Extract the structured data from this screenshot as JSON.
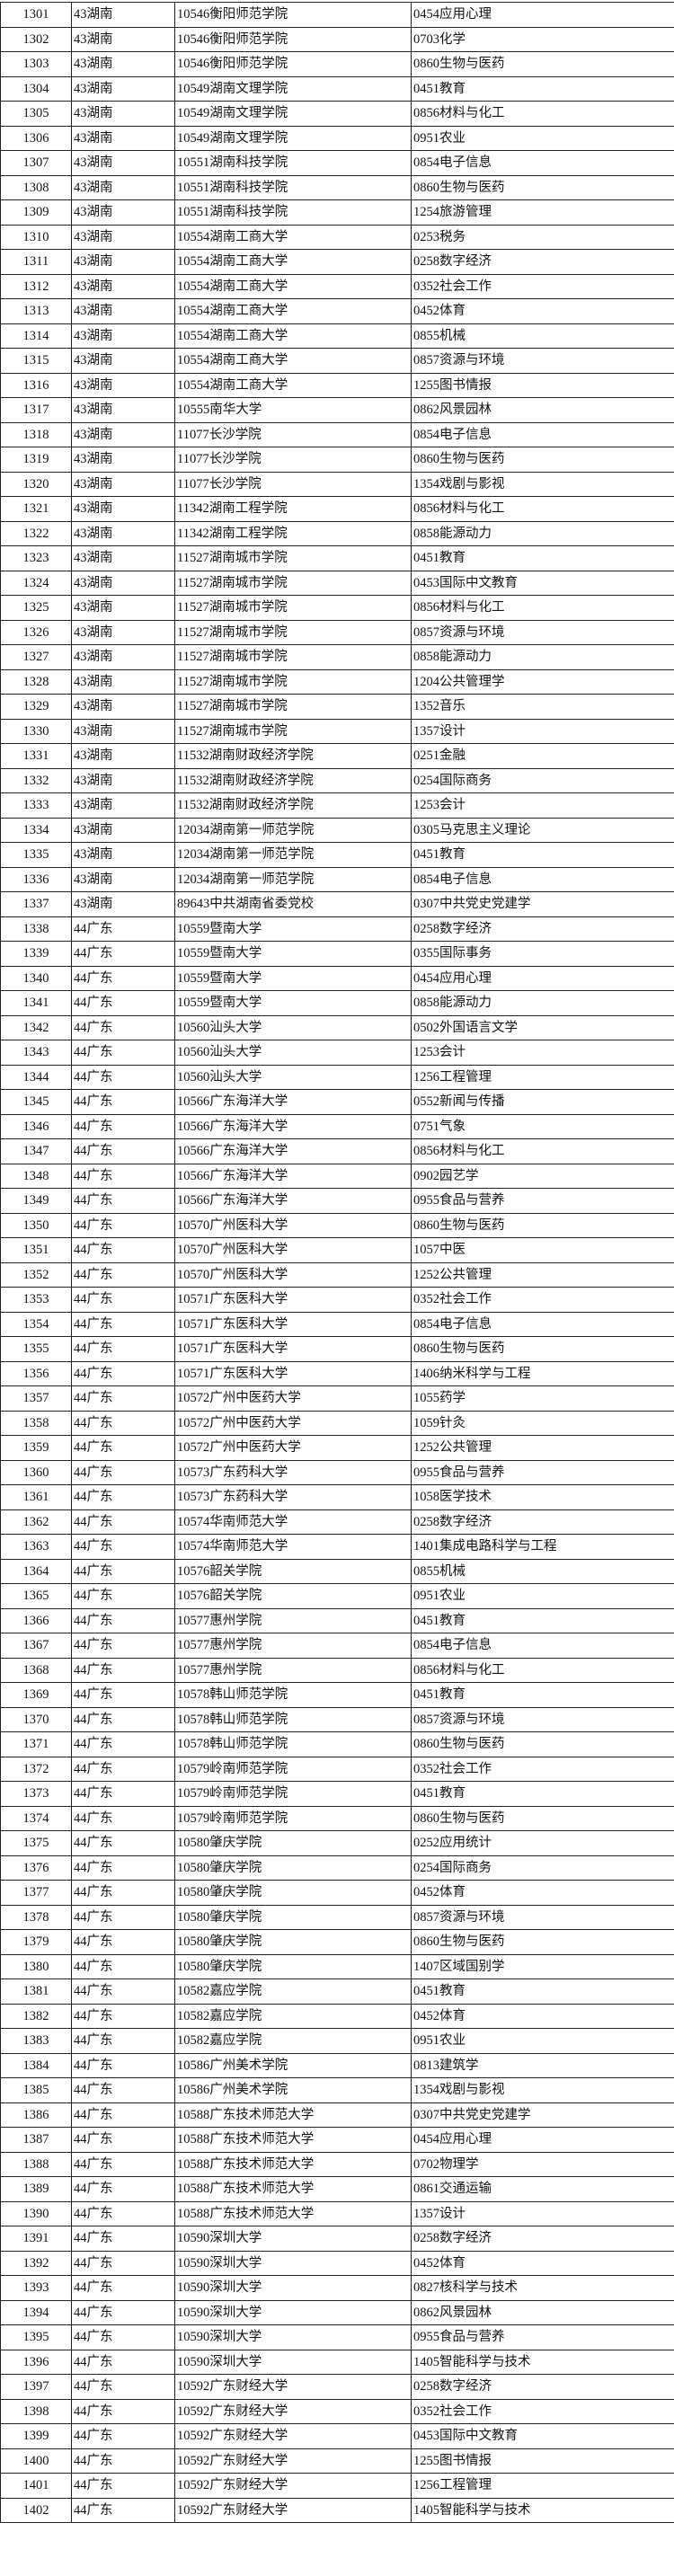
{
  "table": {
    "rows": [
      [
        "1301",
        "43湖南",
        "10546衡阳师范学院",
        "0454应用心理"
      ],
      [
        "1302",
        "43湖南",
        "10546衡阳师范学院",
        "0703化学"
      ],
      [
        "1303",
        "43湖南",
        "10546衡阳师范学院",
        "0860生物与医药"
      ],
      [
        "1304",
        "43湖南",
        "10549湖南文理学院",
        "0451教育"
      ],
      [
        "1305",
        "43湖南",
        "10549湖南文理学院",
        "0856材料与化工"
      ],
      [
        "1306",
        "43湖南",
        "10549湖南文理学院",
        "0951农业"
      ],
      [
        "1307",
        "43湖南",
        "10551湖南科技学院",
        "0854电子信息"
      ],
      [
        "1308",
        "43湖南",
        "10551湖南科技学院",
        "0860生物与医药"
      ],
      [
        "1309",
        "43湖南",
        "10551湖南科技学院",
        "1254旅游管理"
      ],
      [
        "1310",
        "43湖南",
        "10554湖南工商大学",
        "0253税务"
      ],
      [
        "1311",
        "43湖南",
        "10554湖南工商大学",
        "0258数字经济"
      ],
      [
        "1312",
        "43湖南",
        "10554湖南工商大学",
        "0352社会工作"
      ],
      [
        "1313",
        "43湖南",
        "10554湖南工商大学",
        "0452体育"
      ],
      [
        "1314",
        "43湖南",
        "10554湖南工商大学",
        "0855机械"
      ],
      [
        "1315",
        "43湖南",
        "10554湖南工商大学",
        "0857资源与环境"
      ],
      [
        "1316",
        "43湖南",
        "10554湖南工商大学",
        "1255图书情报"
      ],
      [
        "1317",
        "43湖南",
        "10555南华大学",
        "0862风景园林"
      ],
      [
        "1318",
        "43湖南",
        "11077长沙学院",
        "0854电子信息"
      ],
      [
        "1319",
        "43湖南",
        "11077长沙学院",
        "0860生物与医药"
      ],
      [
        "1320",
        "43湖南",
        "11077长沙学院",
        "1354戏剧与影视"
      ],
      [
        "1321",
        "43湖南",
        "11342湖南工程学院",
        "0856材料与化工"
      ],
      [
        "1322",
        "43湖南",
        "11342湖南工程学院",
        "0858能源动力"
      ],
      [
        "1323",
        "43湖南",
        "11527湖南城市学院",
        "0451教育"
      ],
      [
        "1324",
        "43湖南",
        "11527湖南城市学院",
        "0453国际中文教育"
      ],
      [
        "1325",
        "43湖南",
        "11527湖南城市学院",
        "0856材料与化工"
      ],
      [
        "1326",
        "43湖南",
        "11527湖南城市学院",
        "0857资源与环境"
      ],
      [
        "1327",
        "43湖南",
        "11527湖南城市学院",
        "0858能源动力"
      ],
      [
        "1328",
        "43湖南",
        "11527湖南城市学院",
        "1204公共管理学"
      ],
      [
        "1329",
        "43湖南",
        "11527湖南城市学院",
        "1352音乐"
      ],
      [
        "1330",
        "43湖南",
        "11527湖南城市学院",
        "1357设计"
      ],
      [
        "1331",
        "43湖南",
        "11532湖南财政经济学院",
        "0251金融"
      ],
      [
        "1332",
        "43湖南",
        "11532湖南财政经济学院",
        "0254国际商务"
      ],
      [
        "1333",
        "43湖南",
        "11532湖南财政经济学院",
        "1253会计"
      ],
      [
        "1334",
        "43湖南",
        "12034湖南第一师范学院",
        "0305马克思主义理论"
      ],
      [
        "1335",
        "43湖南",
        "12034湖南第一师范学院",
        "0451教育"
      ],
      [
        "1336",
        "43湖南",
        "12034湖南第一师范学院",
        "0854电子信息"
      ],
      [
        "1337",
        "43湖南",
        "89643中共湖南省委党校",
        "0307中共党史党建学"
      ],
      [
        "1338",
        "44广东",
        "10559暨南大学",
        "0258数字经济"
      ],
      [
        "1339",
        "44广东",
        "10559暨南大学",
        "0355国际事务"
      ],
      [
        "1340",
        "44广东",
        "10559暨南大学",
        "0454应用心理"
      ],
      [
        "1341",
        "44广东",
        "10559暨南大学",
        "0858能源动力"
      ],
      [
        "1342",
        "44广东",
        "10560汕头大学",
        "0502外国语言文学"
      ],
      [
        "1343",
        "44广东",
        "10560汕头大学",
        "1253会计"
      ],
      [
        "1344",
        "44广东",
        "10560汕头大学",
        "1256工程管理"
      ],
      [
        "1345",
        "44广东",
        "10566广东海洋大学",
        "0552新闻与传播"
      ],
      [
        "1346",
        "44广东",
        "10566广东海洋大学",
        "0751气象"
      ],
      [
        "1347",
        "44广东",
        "10566广东海洋大学",
        "0856材料与化工"
      ],
      [
        "1348",
        "44广东",
        "10566广东海洋大学",
        "0902园艺学"
      ],
      [
        "1349",
        "44广东",
        "10566广东海洋大学",
        "0955食品与营养"
      ],
      [
        "1350",
        "44广东",
        "10570广州医科大学",
        "0860生物与医药"
      ],
      [
        "1351",
        "44广东",
        "10570广州医科大学",
        "1057中医"
      ],
      [
        "1352",
        "44广东",
        "10570广州医科大学",
        "1252公共管理"
      ],
      [
        "1353",
        "44广东",
        "10571广东医科大学",
        "0352社会工作"
      ],
      [
        "1354",
        "44广东",
        "10571广东医科大学",
        "0854电子信息"
      ],
      [
        "1355",
        "44广东",
        "10571广东医科大学",
        "0860生物与医药"
      ],
      [
        "1356",
        "44广东",
        "10571广东医科大学",
        "1406纳米科学与工程"
      ],
      [
        "1357",
        "44广东",
        "10572广州中医药大学",
        "1055药学"
      ],
      [
        "1358",
        "44广东",
        "10572广州中医药大学",
        "1059针灸"
      ],
      [
        "1359",
        "44广东",
        "10572广州中医药大学",
        "1252公共管理"
      ],
      [
        "1360",
        "44广东",
        "10573广东药科大学",
        "0955食品与营养"
      ],
      [
        "1361",
        "44广东",
        "10573广东药科大学",
        "1058医学技术"
      ],
      [
        "1362",
        "44广东",
        "10574华南师范大学",
        "0258数字经济"
      ],
      [
        "1363",
        "44广东",
        "10574华南师范大学",
        "1401集成电路科学与工程"
      ],
      [
        "1364",
        "44广东",
        "10576韶关学院",
        "0855机械"
      ],
      [
        "1365",
        "44广东",
        "10576韶关学院",
        "0951农业"
      ],
      [
        "1366",
        "44广东",
        "10577惠州学院",
        "0451教育"
      ],
      [
        "1367",
        "44广东",
        "10577惠州学院",
        "0854电子信息"
      ],
      [
        "1368",
        "44广东",
        "10577惠州学院",
        "0856材料与化工"
      ],
      [
        "1369",
        "44广东",
        "10578韩山师范学院",
        "0451教育"
      ],
      [
        "1370",
        "44广东",
        "10578韩山师范学院",
        "0857资源与环境"
      ],
      [
        "1371",
        "44广东",
        "10578韩山师范学院",
        "0860生物与医药"
      ],
      [
        "1372",
        "44广东",
        "10579岭南师范学院",
        "0352社会工作"
      ],
      [
        "1373",
        "44广东",
        "10579岭南师范学院",
        "0451教育"
      ],
      [
        "1374",
        "44广东",
        "10579岭南师范学院",
        "0860生物与医药"
      ],
      [
        "1375",
        "44广东",
        "10580肇庆学院",
        "0252应用统计"
      ],
      [
        "1376",
        "44广东",
        "10580肇庆学院",
        "0254国际商务"
      ],
      [
        "1377",
        "44广东",
        "10580肇庆学院",
        "0452体育"
      ],
      [
        "1378",
        "44广东",
        "10580肇庆学院",
        "0857资源与环境"
      ],
      [
        "1379",
        "44广东",
        "10580肇庆学院",
        "0860生物与医药"
      ],
      [
        "1380",
        "44广东",
        "10580肇庆学院",
        "1407区域国别学"
      ],
      [
        "1381",
        "44广东",
        "10582嘉应学院",
        "0451教育"
      ],
      [
        "1382",
        "44广东",
        "10582嘉应学院",
        "0452体育"
      ],
      [
        "1383",
        "44广东",
        "10582嘉应学院",
        "0951农业"
      ],
      [
        "1384",
        "44广东",
        "10586广州美术学院",
        "0813建筑学"
      ],
      [
        "1385",
        "44广东",
        "10586广州美术学院",
        "1354戏剧与影视"
      ],
      [
        "1386",
        "44广东",
        "10588广东技术师范大学",
        "0307中共党史党建学"
      ],
      [
        "1387",
        "44广东",
        "10588广东技术师范大学",
        "0454应用心理"
      ],
      [
        "1388",
        "44广东",
        "10588广东技术师范大学",
        "0702物理学"
      ],
      [
        "1389",
        "44广东",
        "10588广东技术师范大学",
        "0861交通运输"
      ],
      [
        "1390",
        "44广东",
        "10588广东技术师范大学",
        "1357设计"
      ],
      [
        "1391",
        "44广东",
        "10590深圳大学",
        "0258数字经济"
      ],
      [
        "1392",
        "44广东",
        "10590深圳大学",
        "0452体育"
      ],
      [
        "1393",
        "44广东",
        "10590深圳大学",
        "0827核科学与技术"
      ],
      [
        "1394",
        "44广东",
        "10590深圳大学",
        "0862风景园林"
      ],
      [
        "1395",
        "44广东",
        "10590深圳大学",
        "0955食品与营养"
      ],
      [
        "1396",
        "44广东",
        "10590深圳大学",
        "1405智能科学与技术"
      ],
      [
        "1397",
        "44广东",
        "10592广东财经大学",
        "0258数字经济"
      ],
      [
        "1398",
        "44广东",
        "10592广东财经大学",
        "0352社会工作"
      ],
      [
        "1399",
        "44广东",
        "10592广东财经大学",
        "0453国际中文教育"
      ],
      [
        "1400",
        "44广东",
        "10592广东财经大学",
        "1255图书情报"
      ],
      [
        "1401",
        "44广东",
        "10592广东财经大学",
        "1256工程管理"
      ],
      [
        "1402",
        "44广东",
        "10592广东财经大学",
        "1405智能科学与技术"
      ]
    ]
  }
}
